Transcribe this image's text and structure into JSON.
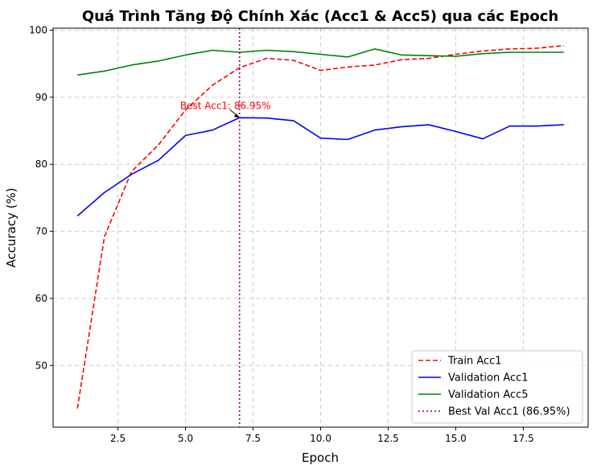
{
  "chart_data": {
    "type": "line",
    "title": "Quá Trình Tăng Độ Chính Xác (Acc1 & Acc5) qua các Epoch",
    "xlabel": "Epoch",
    "ylabel": "Accuracy (%)",
    "xlim": [
      0.1,
      19.9
    ],
    "ylim": [
      40.8,
      100.3
    ],
    "xticks": [
      2.5,
      5.0,
      7.5,
      10.0,
      12.5,
      15.0,
      17.5
    ],
    "xtick_labels": [
      "2.5",
      "5.0",
      "7.5",
      "10.0",
      "12.5",
      "15.0",
      "17.5"
    ],
    "yticks": [
      50,
      60,
      70,
      80,
      90,
      100
    ],
    "ytick_labels": [
      "50",
      "60",
      "70",
      "80",
      "90",
      "100"
    ],
    "grid": true,
    "legend_position": "bottom-right",
    "x": [
      1,
      2,
      3,
      4,
      5,
      6,
      7,
      8,
      9,
      10,
      11,
      12,
      13,
      14,
      15,
      16,
      17,
      18,
      19
    ],
    "series": [
      {
        "name": "Train Acc1",
        "color": "#ff0000",
        "style": "dashed",
        "values": [
          43.6,
          69.2,
          78.9,
          82.9,
          88.1,
          91.8,
          94.4,
          95.8,
          95.5,
          94.0,
          94.5,
          94.8,
          95.6,
          95.8,
          96.4,
          96.9,
          97.2,
          97.3,
          97.7
        ]
      },
      {
        "name": "Validation Acc1",
        "color": "#0000ff",
        "style": "solid",
        "values": [
          72.3,
          75.8,
          78.5,
          80.6,
          84.3,
          85.1,
          86.95,
          86.9,
          86.5,
          83.9,
          83.7,
          85.1,
          85.6,
          85.9,
          84.9,
          83.8,
          85.7,
          85.7,
          85.9
        ]
      },
      {
        "name": "Validation Acc5",
        "color": "#008000",
        "style": "solid",
        "values": [
          93.3,
          93.9,
          94.8,
          95.4,
          96.3,
          97.0,
          96.7,
          97.0,
          96.8,
          96.4,
          96.0,
          97.2,
          96.3,
          96.2,
          96.1,
          96.5,
          96.7,
          96.7,
          96.7
        ]
      }
    ],
    "best_line": {
      "name": "Best Val Acc1 (86.95%)",
      "x": 7,
      "color": "#800080",
      "style": "dotted"
    },
    "annotation": {
      "text": "Best Acc1: 86.95%",
      "x": 7,
      "y": 86.95,
      "text_x": 4.8,
      "text_y": 88.7,
      "color": "#ff0000"
    }
  }
}
